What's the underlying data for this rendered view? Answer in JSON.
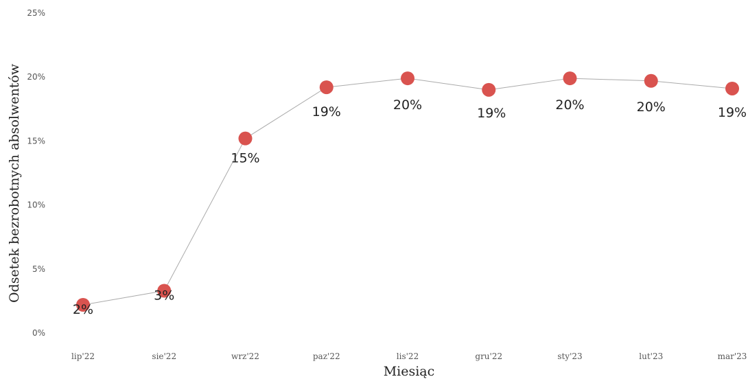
{
  "chart_data": {
    "type": "line",
    "title": "",
    "xlabel": "Miesiąc",
    "ylabel": "Odsetek bezrobotnych absolwentów",
    "categories": [
      "lip'22",
      "sie'22",
      "wrz'22",
      "paz'22",
      "lis'22",
      "gru'22",
      "sty'23",
      "lut'23",
      "mar'23"
    ],
    "series": [
      {
        "values": [
          2.2,
          3.3,
          15.2,
          19.2,
          19.9,
          19.0,
          19.9,
          19.7,
          19.1
        ],
        "labels": [
          "2%",
          "3%",
          "15%",
          "19%",
          "20%",
          "19%",
          "20%",
          "20%",
          "19%"
        ]
      }
    ],
    "ylim": [
      0,
      25
    ],
    "yticks": [
      {
        "value": 0,
        "label": "0%"
      },
      {
        "value": 5,
        "label": "5%"
      },
      {
        "value": 10,
        "label": "10%"
      },
      {
        "value": 15,
        "label": "15%"
      },
      {
        "value": 20,
        "label": "20%"
      },
      {
        "value": 25,
        "label": "25%"
      }
    ],
    "grid": false,
    "legend": "none",
    "colors": {
      "marker": "#d9534f",
      "line": "#aaaaaa",
      "text": "#222222",
      "tick": "#555555"
    }
  }
}
